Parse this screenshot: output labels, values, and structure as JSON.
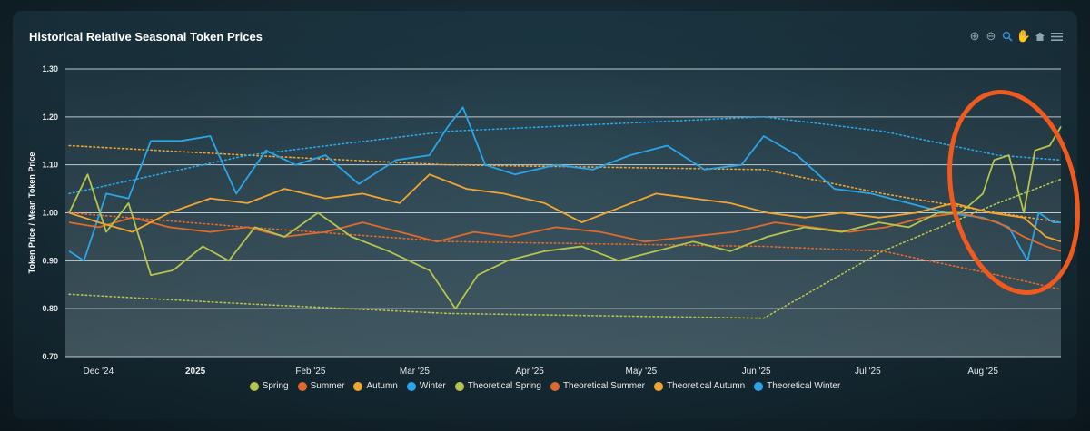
{
  "title": "Historical Relative Seasonal Token Prices",
  "toolbar": {
    "icons": [
      "zoom-in-icon",
      "zoom-out-icon",
      "magnifier-icon",
      "pan-hand-icon",
      "home-icon",
      "menu-icon"
    ]
  },
  "chart_data": {
    "type": "line",
    "title": "Historical Relative Seasonal Token Prices",
    "ylabel": "Token Price / Mean Token Price",
    "xlabel": "",
    "ylim": [
      0.7,
      1.3
    ],
    "yticks": [
      "0.70",
      "0.80",
      "0.90",
      "1.00",
      "1.10",
      "1.20",
      "1.30"
    ],
    "xlim": [
      "2024-12-01",
      "2025-08-22"
    ],
    "xticks": [
      {
        "date": "2024-12-01",
        "label": "Dec '24"
      },
      {
        "date": "2025-01-01",
        "label": "2025"
      },
      {
        "date": "2025-02-01",
        "label": "Feb '25"
      },
      {
        "date": "2025-03-01",
        "label": "Mar '25"
      },
      {
        "date": "2025-04-01",
        "label": "Apr '25"
      },
      {
        "date": "2025-05-01",
        "label": "May '25"
      },
      {
        "date": "2025-06-01",
        "label": "Jun '25"
      },
      {
        "date": "2025-07-01",
        "label": "Jul '25"
      },
      {
        "date": "2025-08-01",
        "label": "Aug '25"
      }
    ],
    "grid": true,
    "legend_position": "bottom",
    "series": [
      {
        "name": "Spring",
        "color": "#b4c44c",
        "style": "solid",
        "points": [
          [
            "2024-11-28",
            1.0
          ],
          [
            "2024-12-03",
            1.08
          ],
          [
            "2024-12-08",
            0.96
          ],
          [
            "2024-12-14",
            1.02
          ],
          [
            "2024-12-20",
            0.87
          ],
          [
            "2024-12-26",
            0.88
          ],
          [
            "2025-01-03",
            0.93
          ],
          [
            "2025-01-10",
            0.9
          ],
          [
            "2025-01-17",
            0.97
          ],
          [
            "2025-01-25",
            0.95
          ],
          [
            "2025-02-03",
            1.0
          ],
          [
            "2025-02-12",
            0.95
          ],
          [
            "2025-02-22",
            0.92
          ],
          [
            "2025-03-05",
            0.88
          ],
          [
            "2025-03-12",
            0.8
          ],
          [
            "2025-03-18",
            0.87
          ],
          [
            "2025-03-26",
            0.9
          ],
          [
            "2025-04-05",
            0.92
          ],
          [
            "2025-04-15",
            0.93
          ],
          [
            "2025-04-25",
            0.9
          ],
          [
            "2025-05-05",
            0.92
          ],
          [
            "2025-05-15",
            0.94
          ],
          [
            "2025-05-25",
            0.92
          ],
          [
            "2025-06-04",
            0.95
          ],
          [
            "2025-06-14",
            0.97
          ],
          [
            "2025-06-24",
            0.96
          ],
          [
            "2025-07-04",
            0.98
          ],
          [
            "2025-07-12",
            0.97
          ],
          [
            "2025-07-20",
            1.0
          ],
          [
            "2025-07-26",
            1.0
          ],
          [
            "2025-08-01",
            1.04
          ],
          [
            "2025-08-04",
            1.11
          ],
          [
            "2025-08-08",
            1.12
          ],
          [
            "2025-08-12",
            1.0
          ],
          [
            "2025-08-15",
            1.13
          ],
          [
            "2025-08-19",
            1.14
          ],
          [
            "2025-08-22",
            1.18
          ]
        ]
      },
      {
        "name": "Summer",
        "color": "#e06a2b",
        "style": "solid",
        "points": [
          [
            "2024-11-28",
            0.98
          ],
          [
            "2024-12-06",
            0.97
          ],
          [
            "2024-12-15",
            0.99
          ],
          [
            "2024-12-25",
            0.97
          ],
          [
            "2025-01-05",
            0.96
          ],
          [
            "2025-01-15",
            0.97
          ],
          [
            "2025-01-25",
            0.95
          ],
          [
            "2025-02-05",
            0.96
          ],
          [
            "2025-02-15",
            0.98
          ],
          [
            "2025-02-25",
            0.96
          ],
          [
            "2025-03-07",
            0.94
          ],
          [
            "2025-03-17",
            0.96
          ],
          [
            "2025-03-27",
            0.95
          ],
          [
            "2025-04-08",
            0.97
          ],
          [
            "2025-04-20",
            0.96
          ],
          [
            "2025-05-02",
            0.94
          ],
          [
            "2025-05-14",
            0.95
          ],
          [
            "2025-05-26",
            0.96
          ],
          [
            "2025-06-06",
            0.98
          ],
          [
            "2025-06-16",
            0.97
          ],
          [
            "2025-06-26",
            0.96
          ],
          [
            "2025-07-06",
            0.97
          ],
          [
            "2025-07-16",
            0.99
          ],
          [
            "2025-07-26",
            1.0
          ],
          [
            "2025-08-05",
            0.98
          ],
          [
            "2025-08-12",
            0.95
          ],
          [
            "2025-08-18",
            0.93
          ],
          [
            "2025-08-22",
            0.92
          ]
        ]
      },
      {
        "name": "Autumn",
        "color": "#f0a530",
        "style": "solid",
        "points": [
          [
            "2024-11-28",
            1.0
          ],
          [
            "2024-12-06",
            0.98
          ],
          [
            "2024-12-15",
            0.96
          ],
          [
            "2024-12-25",
            1.0
          ],
          [
            "2025-01-05",
            1.03
          ],
          [
            "2025-01-15",
            1.02
          ],
          [
            "2025-01-25",
            1.05
          ],
          [
            "2025-02-05",
            1.03
          ],
          [
            "2025-02-15",
            1.04
          ],
          [
            "2025-02-25",
            1.02
          ],
          [
            "2025-03-05",
            1.08
          ],
          [
            "2025-03-15",
            1.05
          ],
          [
            "2025-03-25",
            1.04
          ],
          [
            "2025-04-05",
            1.02
          ],
          [
            "2025-04-15",
            0.98
          ],
          [
            "2025-04-25",
            1.01
          ],
          [
            "2025-05-05",
            1.04
          ],
          [
            "2025-05-15",
            1.03
          ],
          [
            "2025-05-25",
            1.02
          ],
          [
            "2025-06-04",
            1.0
          ],
          [
            "2025-06-14",
            0.99
          ],
          [
            "2025-06-24",
            1.0
          ],
          [
            "2025-07-04",
            0.99
          ],
          [
            "2025-07-14",
            1.0
          ],
          [
            "2025-07-24",
            1.02
          ],
          [
            "2025-08-03",
            1.0
          ],
          [
            "2025-08-12",
            0.99
          ],
          [
            "2025-08-18",
            0.95
          ],
          [
            "2025-08-22",
            0.94
          ]
        ]
      },
      {
        "name": "Winter",
        "color": "#2aa6e8",
        "style": "solid",
        "points": [
          [
            "2024-11-28",
            0.92
          ],
          [
            "2024-12-02",
            0.9
          ],
          [
            "2024-12-08",
            1.04
          ],
          [
            "2024-12-14",
            1.03
          ],
          [
            "2024-12-20",
            1.15
          ],
          [
            "2024-12-28",
            1.15
          ],
          [
            "2025-01-05",
            1.16
          ],
          [
            "2025-01-12",
            1.04
          ],
          [
            "2025-01-20",
            1.13
          ],
          [
            "2025-01-28",
            1.1
          ],
          [
            "2025-02-05",
            1.12
          ],
          [
            "2025-02-14",
            1.06
          ],
          [
            "2025-02-24",
            1.11
          ],
          [
            "2025-03-05",
            1.12
          ],
          [
            "2025-03-10",
            1.18
          ],
          [
            "2025-03-14",
            1.22
          ],
          [
            "2025-03-20",
            1.1
          ],
          [
            "2025-03-28",
            1.08
          ],
          [
            "2025-04-08",
            1.1
          ],
          [
            "2025-04-18",
            1.09
          ],
          [
            "2025-04-28",
            1.12
          ],
          [
            "2025-05-08",
            1.14
          ],
          [
            "2025-05-18",
            1.09
          ],
          [
            "2025-05-28",
            1.1
          ],
          [
            "2025-06-03",
            1.16
          ],
          [
            "2025-06-12",
            1.12
          ],
          [
            "2025-06-22",
            1.05
          ],
          [
            "2025-07-02",
            1.04
          ],
          [
            "2025-07-12",
            1.02
          ],
          [
            "2025-07-22",
            1.0
          ],
          [
            "2025-08-01",
            0.99
          ],
          [
            "2025-08-08",
            0.97
          ],
          [
            "2025-08-13",
            0.9
          ],
          [
            "2025-08-16",
            1.0
          ],
          [
            "2025-08-20",
            0.98
          ],
          [
            "2025-08-22",
            0.98
          ]
        ]
      },
      {
        "name": "Theoretical Spring",
        "color": "#b4c44c",
        "style": "dotted",
        "points": [
          [
            "2024-11-28",
            0.83
          ],
          [
            "2025-01-15",
            0.81
          ],
          [
            "2025-03-10",
            0.79
          ],
          [
            "2025-06-03",
            0.78
          ],
          [
            "2025-07-05",
            0.92
          ],
          [
            "2025-08-05",
            1.02
          ],
          [
            "2025-08-22",
            1.07
          ]
        ]
      },
      {
        "name": "Theoretical Summer",
        "color": "#e06a2b",
        "style": "dotted",
        "points": [
          [
            "2024-11-28",
            1.0
          ],
          [
            "2025-01-15",
            0.97
          ],
          [
            "2025-03-10",
            0.94
          ],
          [
            "2025-06-03",
            0.93
          ],
          [
            "2025-07-05",
            0.92
          ],
          [
            "2025-08-05",
            0.87
          ],
          [
            "2025-08-22",
            0.84
          ]
        ]
      },
      {
        "name": "Theoretical Autumn",
        "color": "#f0a530",
        "style": "dotted",
        "points": [
          [
            "2024-11-28",
            1.14
          ],
          [
            "2025-01-15",
            1.12
          ],
          [
            "2025-03-10",
            1.1
          ],
          [
            "2025-06-03",
            1.09
          ],
          [
            "2025-07-05",
            1.04
          ],
          [
            "2025-08-05",
            1.0
          ],
          [
            "2025-08-22",
            0.98
          ]
        ]
      },
      {
        "name": "Theoretical Winter",
        "color": "#2aa6e8",
        "style": "dotted",
        "points": [
          [
            "2024-11-28",
            1.04
          ],
          [
            "2025-01-15",
            1.12
          ],
          [
            "2025-03-10",
            1.17
          ],
          [
            "2025-06-03",
            1.2
          ],
          [
            "2025-07-05",
            1.17
          ],
          [
            "2025-08-05",
            1.12
          ],
          [
            "2025-08-22",
            1.11
          ]
        ]
      }
    ]
  }
}
